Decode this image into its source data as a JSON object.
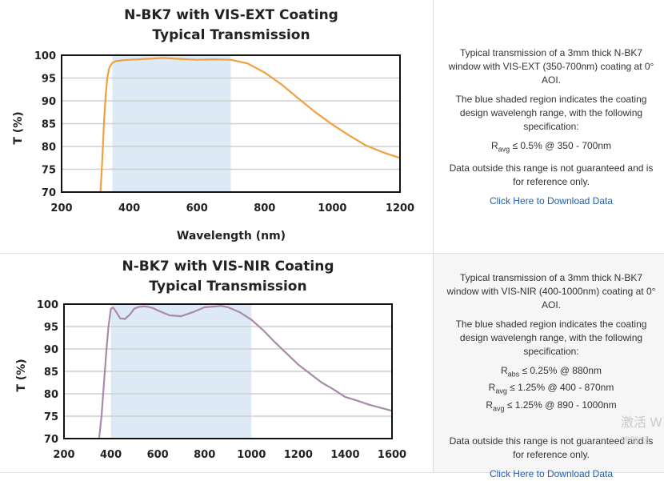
{
  "charts": [
    {
      "id": "vis-ext",
      "title_line1": "N-BK7 with VIS-EXT Coating",
      "title_line2": "Typical Transmission",
      "xlabel": "Wavelength (nm)",
      "ylabel": "T (%)",
      "description": {
        "p1": "Typical transmission of a 3mm thick N-BK7 window with VIS-EXT (350-700nm) coating at 0° AOI.",
        "p2": "The blue shaded region indicates the coating design wavelengh range, with the following specification:",
        "specs": [
          {
            "sym": "R",
            "sub": "avg",
            "text": "≤ 0.5% @ 350 - 700nm"
          }
        ],
        "p3": "Data outside this range is not guaranteed and is for reference only.",
        "link": "Click Here to Download Data"
      }
    },
    {
      "id": "vis-nir",
      "title_line1": "N-BK7 with VIS-NIR Coating",
      "title_line2": "Typical Transmission",
      "xlabel": "",
      "ylabel": "T (%)",
      "description": {
        "p1": "Typical transmission of a 3mm thick N-BK7 window with VIS-NIR (400-1000nm) coating at 0° AOI.",
        "p2": "The blue shaded region indicates the coating design wavelengh range, with the following specification:",
        "specs": [
          {
            "sym": "R",
            "sub": "abs",
            "text": "≤ 0.25% @ 880nm"
          },
          {
            "sym": "R",
            "sub": "avg",
            "text": "≤ 1.25% @ 400 - 870nm"
          },
          {
            "sym": "R",
            "sub": "avg",
            "text": "≤ 1.25% @ 890 - 1000nm"
          }
        ],
        "p3": "Data outside this range is not guaranteed and is for reference only.",
        "link": "Click Here to Download Data"
      }
    }
  ],
  "watermark": {
    "line1": "激活 W",
    "line2": "转到“设"
  },
  "chart_data": [
    {
      "type": "line",
      "title": "N-BK7 with VIS-EXT Coating Typical Transmission",
      "xlabel": "Wavelength (nm)",
      "ylabel": "T (%)",
      "xlim": [
        200,
        1200
      ],
      "ylim": [
        70,
        100
      ],
      "xticks": [
        200,
        400,
        600,
        800,
        1000,
        1200
      ],
      "yticks": [
        70,
        75,
        80,
        85,
        90,
        95,
        100
      ],
      "grid": true,
      "shaded_region": [
        350,
        700
      ],
      "line_color": "#f0a040",
      "shade_color": "#dde9f5",
      "series": [
        {
          "x": [
            315,
            320,
            325,
            330,
            335,
            340,
            345,
            350,
            360,
            380,
            400,
            450,
            500,
            550,
            600,
            650,
            700,
            750,
            800,
            850,
            900,
            950,
            1000,
            1050,
            1100,
            1150,
            1200
          ],
          "y": [
            70,
            77,
            85,
            91,
            95,
            97,
            97.8,
            98.3,
            98.7,
            98.9,
            99.0,
            99.2,
            99.4,
            99.2,
            99.0,
            99.1,
            99.0,
            98.2,
            96.2,
            93.6,
            90.5,
            87.5,
            84.8,
            82.4,
            80.2,
            78.7,
            77.5
          ]
        }
      ]
    },
    {
      "type": "line",
      "title": "N-BK7 with VIS-NIR Coating Typical Transmission",
      "xlabel": "",
      "ylabel": "T (%)",
      "xlim": [
        200,
        1600
      ],
      "ylim": [
        70,
        100
      ],
      "xticks": [
        200,
        400,
        600,
        800,
        1000,
        1200,
        1400,
        1600
      ],
      "yticks": [
        70,
        75,
        80,
        85,
        90,
        95,
        100
      ],
      "grid": true,
      "shaded_region": [
        400,
        1000
      ],
      "line_color": "#a98aab",
      "shade_color": "#dde9f5",
      "series": [
        {
          "x": [
            350,
            360,
            370,
            380,
            390,
            400,
            410,
            420,
            440,
            460,
            480,
            500,
            520,
            540,
            560,
            580,
            600,
            650,
            700,
            750,
            800,
            850,
            870,
            900,
            950,
            1000,
            1050,
            1100,
            1150,
            1200,
            1300,
            1350,
            1400,
            1450,
            1500,
            1550,
            1600
          ],
          "y": [
            70,
            75,
            82,
            89,
            95,
            99,
            99.2,
            98.5,
            96.8,
            96.7,
            97.6,
            99.0,
            99.4,
            99.5,
            99.4,
            99.1,
            98.6,
            97.5,
            97.3,
            98.2,
            99.3,
            99.5,
            99.6,
            99.3,
            98.2,
            96.5,
            94.2,
            91.5,
            89.0,
            86.5,
            82.5,
            81.0,
            79.3,
            78.5,
            77.6,
            76.9,
            76.2
          ]
        }
      ]
    }
  ]
}
